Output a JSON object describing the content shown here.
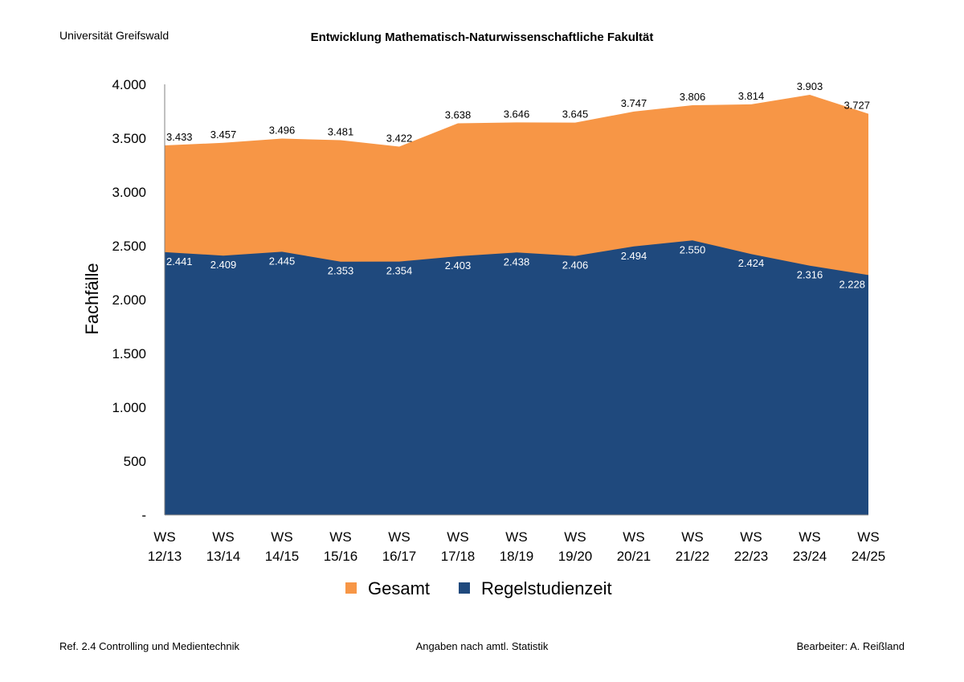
{
  "header": {
    "institution": "Universität Greifswald",
    "title": "Entwicklung Mathematisch-Naturwissenschaftliche Fakultät"
  },
  "footer": {
    "left": "Ref. 2.4 Controlling und Medientechnik",
    "center": "Angaben nach amtl. Statistik",
    "right": "Bearbeiter: A. Reißland"
  },
  "chart_data": {
    "type": "area",
    "title": "Entwicklung Mathematisch-Naturwissenschaftliche Fakultät",
    "xlabel": "",
    "ylabel": "Fachfälle",
    "ylim": [
      0,
      4000
    ],
    "yticks": [
      {
        "value": 0,
        "label": "-"
      },
      {
        "value": 500,
        "label": "500"
      },
      {
        "value": 1000,
        "label": "1.000"
      },
      {
        "value": 1500,
        "label": "1.500"
      },
      {
        "value": 2000,
        "label": "2.000"
      },
      {
        "value": 2500,
        "label": "2.500"
      },
      {
        "value": 3000,
        "label": "3.000"
      },
      {
        "value": 3500,
        "label": "3.500"
      },
      {
        "value": 4000,
        "label": "4.000"
      }
    ],
    "categories": [
      [
        "WS",
        "12/13"
      ],
      [
        "WS",
        "13/14"
      ],
      [
        "WS",
        "14/15"
      ],
      [
        "WS",
        "15/16"
      ],
      [
        "WS",
        "16/17"
      ],
      [
        "WS",
        "17/18"
      ],
      [
        "WS",
        "18/19"
      ],
      [
        "WS",
        "19/20"
      ],
      [
        "WS",
        "20/21"
      ],
      [
        "WS",
        "21/22"
      ],
      [
        "WS",
        "22/23"
      ],
      [
        "WS",
        "23/24"
      ],
      [
        "WS",
        "24/25"
      ]
    ],
    "series": [
      {
        "name": "Gesamt",
        "color": "#F79646",
        "values": [
          3433,
          3457,
          3496,
          3481,
          3422,
          3638,
          3646,
          3645,
          3747,
          3806,
          3814,
          3903,
          3727
        ],
        "labels": [
          "3.433",
          "3.457",
          "3.496",
          "3.481",
          "3.422",
          "3.638",
          "3.646",
          "3.645",
          "3.747",
          "3.806",
          "3.814",
          "3.903",
          "3.727"
        ]
      },
      {
        "name": "Regelstudienzeit",
        "color": "#1F497D",
        "values": [
          2441,
          2409,
          2445,
          2353,
          2354,
          2403,
          2438,
          2406,
          2494,
          2550,
          2424,
          2316,
          2228
        ],
        "labels": [
          "2.441",
          "2.409",
          "2.445",
          "2.353",
          "2.354",
          "2.403",
          "2.438",
          "2.406",
          "2.494",
          "2.550",
          "2.424",
          "2.316",
          "2.228"
        ]
      }
    ],
    "legend": "bottom",
    "grid": false
  }
}
